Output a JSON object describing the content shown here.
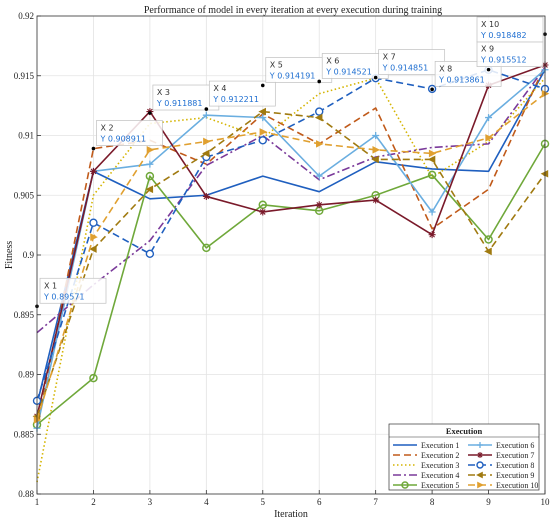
{
  "chart_data": {
    "type": "line",
    "title": "Performance of model in every iteration at every execution during training",
    "xlabel": "Iteration",
    "ylabel": "Fitness",
    "xlim": [
      1,
      10
    ],
    "ylim": [
      0.88,
      0.92
    ],
    "xticks": [
      "1",
      "2",
      "3",
      "4",
      "5",
      "6",
      "7",
      "8",
      "9",
      "10"
    ],
    "yticks": [
      "0.88",
      "0.885",
      "0.89",
      "0.895",
      "0.9",
      "0.905",
      "0.91",
      "0.915",
      "0.92"
    ],
    "grid": true,
    "x": [
      1,
      2,
      3,
      4,
      5,
      6,
      7,
      8,
      9,
      10
    ],
    "legend": {
      "title": "Execution",
      "position": "bottom-right",
      "columns": 2
    },
    "series": [
      {
        "name": "Execution 1",
        "color": "#1f5fbf",
        "dash": "",
        "marker": "none",
        "values": [
          0.8875,
          0.907,
          0.9047,
          0.905,
          0.9066,
          0.9053,
          0.9078,
          0.9072,
          0.907,
          0.9155
        ]
      },
      {
        "name": "Execution 2",
        "color": "#c05a1a",
        "dash": "7,4",
        "marker": "none",
        "values": [
          0.8856,
          0.9089,
          0.9096,
          0.9076,
          0.9118,
          0.9093,
          0.9123,
          0.9022,
          0.9055,
          0.9159
        ]
      },
      {
        "name": "Execution 3",
        "color": "#d4b400",
        "dash": "1.5,2.5",
        "marker": "none",
        "values": [
          0.881,
          0.905,
          0.911,
          0.9115,
          0.9098,
          0.9135,
          0.9148,
          0.9065,
          0.9095,
          0.9148
        ]
      },
      {
        "name": "Execution 4",
        "color": "#7a3a9a",
        "dash": "8,3,2,3",
        "marker": "none",
        "values": [
          0.8935,
          0.8975,
          0.9012,
          0.9075,
          0.91,
          0.9063,
          0.9082,
          0.909,
          0.9093,
          0.9157
        ]
      },
      {
        "name": "Execution 5",
        "color": "#6fa83a",
        "dash": "",
        "marker": "o",
        "values": [
          0.8858,
          0.8897,
          0.9066,
          0.9006,
          0.9042,
          0.9037,
          0.905,
          0.9067,
          0.9013,
          0.9093
        ]
      },
      {
        "name": "Execution 6",
        "color": "#6aaee0",
        "dash": "",
        "marker": "+",
        "values": [
          0.8855,
          0.907,
          0.9076,
          0.9117,
          0.9115,
          0.9066,
          0.91,
          0.9036,
          0.9115,
          0.9155
        ]
      },
      {
        "name": "Execution 7",
        "color": "#7a1a2a",
        "dash": "",
        "marker": "*",
        "values": [
          0.8865,
          0.907,
          0.912,
          0.9049,
          0.9036,
          0.9042,
          0.9046,
          0.9017,
          0.9142,
          0.9159
        ]
      },
      {
        "name": "Execution 8",
        "color": "#1f5fbf",
        "dash": "7,4",
        "marker": "o-open",
        "values": [
          0.8878,
          0.9027,
          0.9001,
          0.9082,
          0.9096,
          0.912,
          0.9148,
          0.9139,
          0.9155,
          0.9139
        ]
      },
      {
        "name": "Execution 9",
        "color": "#a07a10",
        "dash": "7,4",
        "marker": "<",
        "values": [
          0.8865,
          0.9005,
          0.9055,
          0.9085,
          0.912,
          0.9115,
          0.908,
          0.908,
          0.9003,
          0.9068
        ]
      },
      {
        "name": "Execution 10",
        "color": "#e0a030",
        "dash": "7,4",
        "marker": ">",
        "values": [
          0.8862,
          0.9015,
          0.9088,
          0.9095,
          0.9103,
          0.9093,
          0.9088,
          0.9085,
          0.9098,
          0.9135
        ]
      }
    ],
    "annotations": [
      {
        "x": 1,
        "y": 0.89571,
        "x_text": "X 1",
        "y_text": "Y 0.89571"
      },
      {
        "x": 2,
        "y": 0.908911,
        "x_text": "X 2",
        "y_text": "Y 0.908911"
      },
      {
        "x": 3,
        "y": 0.911881,
        "x_text": "X 3",
        "y_text": "Y 0.911881"
      },
      {
        "x": 4,
        "y": 0.912211,
        "x_text": "X 4",
        "y_text": "Y 0.912211"
      },
      {
        "x": 5,
        "y": 0.914191,
        "x_text": "X 5",
        "y_text": "Y 0.914191"
      },
      {
        "x": 6,
        "y": 0.914521,
        "x_text": "X 6",
        "y_text": "Y 0.914521"
      },
      {
        "x": 7,
        "y": 0.914851,
        "x_text": "X 7",
        "y_text": "Y 0.914851"
      },
      {
        "x": 8,
        "y": 0.913861,
        "x_text": "X 8",
        "y_text": "Y 0.913861"
      },
      {
        "x": 9,
        "y": 0.915512,
        "x_text": "X 9",
        "y_text": "Y 0.915512"
      },
      {
        "x": 10,
        "y": 0.918482,
        "x_text": "X 10",
        "y_text": "Y 0.918482"
      }
    ]
  }
}
